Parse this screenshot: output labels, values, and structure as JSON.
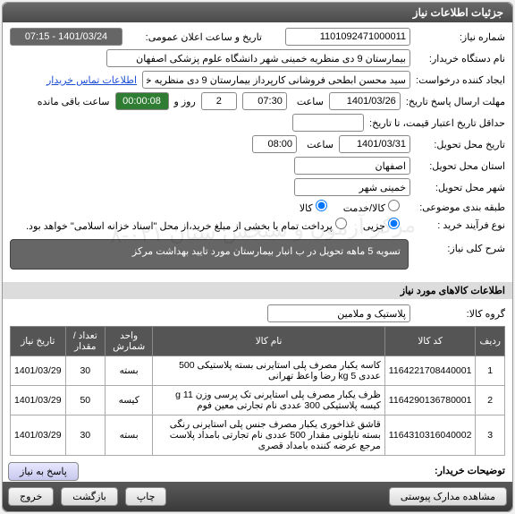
{
  "panel_title": "جزئیات اطلاعات نیاز",
  "labels": {
    "need_no": "شماره نیاز:",
    "ann_date": "تاریخ و ساعت اعلان عمومی:",
    "buyer": "نام دستگاه خریدار:",
    "creator": "ایجاد کننده درخواست:",
    "deadline": "مهلت ارسال پاسخ تاریخ:",
    "saat": "ساعت",
    "rooz_o": "روز و",
    "remain": "ساعت باقی مانده",
    "min_valid": "حداقل تاریخ اعتبار قیمت، تا تاریخ:",
    "deliver": "تاریخ محل تحویل:",
    "province": "استان محل تحویل:",
    "city": "شهر محل تحویل:",
    "budget": "طبقه بندی موضوعی:",
    "proc": "نوع فرآیند خرید :",
    "desc_title": "شرح کلی نیاز:",
    "goods_header": "اطلاعات کالاهای مورد نیاز",
    "group": "گروه کالا:",
    "buyer_notes": "توضیحات خریدار:",
    "contact_link": "اطلاعات تماس خریدار"
  },
  "fields": {
    "need_no": "1101092471000011",
    "ann_date": "1401/03/24 - 07:15",
    "buyer": "بیمارستان 9 دی منظریه خمینی شهر دانشگاه علوم پزشکی اصفهان",
    "creator": "سید محسن ابطحی فروشانی کارپرداز بیمارستان 9 دی منظریه خمینی شهر دان",
    "deadline_date": "1401/03/26",
    "deadline_time": "07:30",
    "days": "2",
    "countdown": "00:00:08",
    "deliver_date": "1401/03/31",
    "deliver_time": "08:00",
    "province": "اصفهان",
    "city": "خمینی شهر",
    "group": "پلاستیک و ملامین",
    "desc": "تسویه 5 ماهه     تحویل در ب انبار بیمارستان    مورد تایید بهداشت مرکز"
  },
  "radios": {
    "budget_a": "کالا/خدمت",
    "budget_b": "کالا",
    "proc_a": "جزیی",
    "proc_b": "پرداخت تمام یا بخشی از مبلغ خرید،از محل \"اسناد خزانه اسلامی\" خواهد بود."
  },
  "table": {
    "headers": [
      "ردیف",
      "کد کالا",
      "نام کالا",
      "واحد شمارش",
      "تعداد / مقدار",
      "تاریخ نیاز"
    ],
    "rows": [
      {
        "idx": "1",
        "code": "1164221708440001",
        "name": "کاسه یکبار مصرف پلی استایرنی بسته پلاستیکی 500 عددی 5 kg رضا واعظ تهرانی",
        "unit": "بسته",
        "qty": "30",
        "date": "1401/03/29"
      },
      {
        "idx": "2",
        "code": "1164290136780001",
        "name": "ظرف یکبار مصرف پلی استایرنی تک پرسی وزن g 11 کیسه پلاستیکی 300 عددی نام تجارتی معین فوم",
        "unit": "کیسه",
        "qty": "50",
        "date": "1401/03/29"
      },
      {
        "idx": "3",
        "code": "1164310316040002",
        "name": "قاشق غذاخوری یکبار مصرف جنس پلی استایرنی رنگی بسته نایلونی مقدار 500 عددی نام تجارتی بامداد پلاست مرجع عرضه کننده بامداد قصری",
        "unit": "بسته",
        "qty": "30",
        "date": "1401/03/29"
      }
    ]
  },
  "buttons": {
    "attach": "مشاهده مدارک پیوستی",
    "print": "چاپ",
    "back": "بازگشت",
    "exit": "خروج",
    "reply": "پاسخ به نیاز"
  },
  "watermark": "مرکز آزمون و سنجش ستان    ۰۲۱-۸"
}
